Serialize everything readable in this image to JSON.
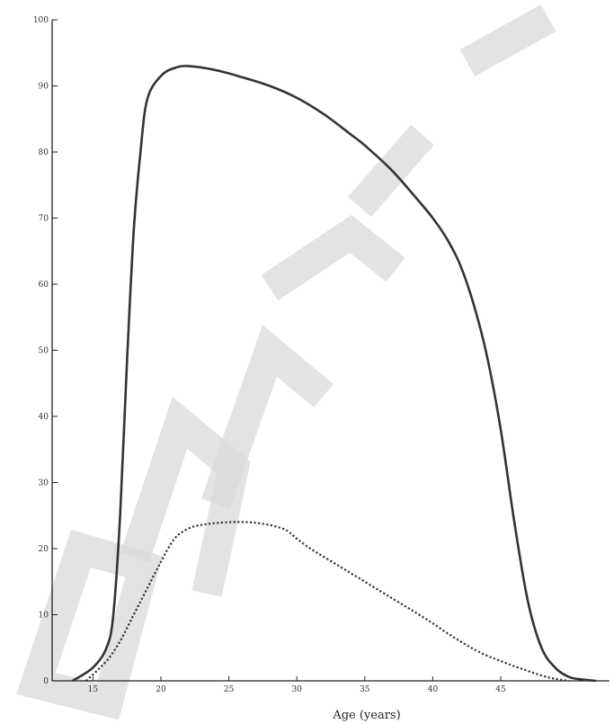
{
  "chart_data": {
    "type": "line",
    "title": "",
    "xlabel": "Age (years)",
    "ylabel": "",
    "xlim": [
      12,
      53
    ],
    "ylim": [
      0,
      100
    ],
    "x_ticks": [
      {
        "value": 15,
        "label": "15"
      },
      {
        "value": 20,
        "label": "20"
      },
      {
        "value": 25,
        "label": "25"
      },
      {
        "value": 30,
        "label": "30"
      },
      {
        "value": 35,
        "label": "35"
      },
      {
        "value": 40,
        "label": "40"
      },
      {
        "value": 45,
        "label": "45"
      }
    ],
    "y_ticks": [
      {
        "value": 0,
        "label": "0"
      },
      {
        "value": 10,
        "label": "10"
      },
      {
        "value": 20,
        "label": "20"
      },
      {
        "value": 30,
        "label": "30"
      },
      {
        "value": 40,
        "label": "40"
      },
      {
        "value": 50,
        "label": "50"
      },
      {
        "value": 60,
        "label": "60"
      },
      {
        "value": 70,
        "label": "70"
      },
      {
        "value": 80,
        "label": "80"
      },
      {
        "value": 90,
        "label": "90"
      },
      {
        "value": 100,
        "label": "100"
      }
    ],
    "grid": false,
    "legend": "none",
    "series": [
      {
        "style": "solid",
        "color": "#333333",
        "points": [
          [
            13.5,
            0
          ],
          [
            15,
            2
          ],
          [
            16,
            5
          ],
          [
            16.5,
            10
          ],
          [
            17,
            25
          ],
          [
            17.5,
            48
          ],
          [
            18,
            68
          ],
          [
            18.5,
            80
          ],
          [
            19,
            88
          ],
          [
            20,
            91.5
          ],
          [
            21,
            92.7
          ],
          [
            22,
            93
          ],
          [
            24,
            92.4
          ],
          [
            26,
            91.3
          ],
          [
            28,
            90
          ],
          [
            30,
            88.2
          ],
          [
            32,
            85.7
          ],
          [
            34,
            82.6
          ],
          [
            35,
            81
          ],
          [
            37,
            77.2
          ],
          [
            39,
            72.5
          ],
          [
            40,
            70
          ],
          [
            41,
            67
          ],
          [
            42,
            63
          ],
          [
            43,
            57
          ],
          [
            44,
            49
          ],
          [
            45,
            38
          ],
          [
            46,
            24
          ],
          [
            47,
            12
          ],
          [
            48,
            5
          ],
          [
            49,
            2
          ],
          [
            50,
            0.6
          ],
          [
            51,
            0.2
          ],
          [
            52,
            0
          ]
        ]
      },
      {
        "style": "dotted",
        "color": "#333333",
        "points": [
          [
            14.5,
            0
          ],
          [
            16,
            3
          ],
          [
            17,
            6
          ],
          [
            18,
            10
          ],
          [
            19,
            14
          ],
          [
            20,
            18
          ],
          [
            21,
            21.5
          ],
          [
            22,
            23
          ],
          [
            23,
            23.6
          ],
          [
            25,
            24
          ],
          [
            27,
            23.9
          ],
          [
            29,
            23
          ],
          [
            30,
            21.5
          ],
          [
            31,
            20
          ],
          [
            33,
            17.5
          ],
          [
            35,
            15
          ],
          [
            37,
            12.5
          ],
          [
            39,
            10
          ],
          [
            40,
            8.7
          ],
          [
            41,
            7.3
          ],
          [
            42,
            6
          ],
          [
            43,
            4.8
          ],
          [
            44,
            3.8
          ],
          [
            45,
            3
          ],
          [
            46,
            2.2
          ],
          [
            47,
            1.5
          ],
          [
            48,
            0.8
          ],
          [
            49,
            0.3
          ],
          [
            50,
            0
          ]
        ]
      }
    ]
  }
}
